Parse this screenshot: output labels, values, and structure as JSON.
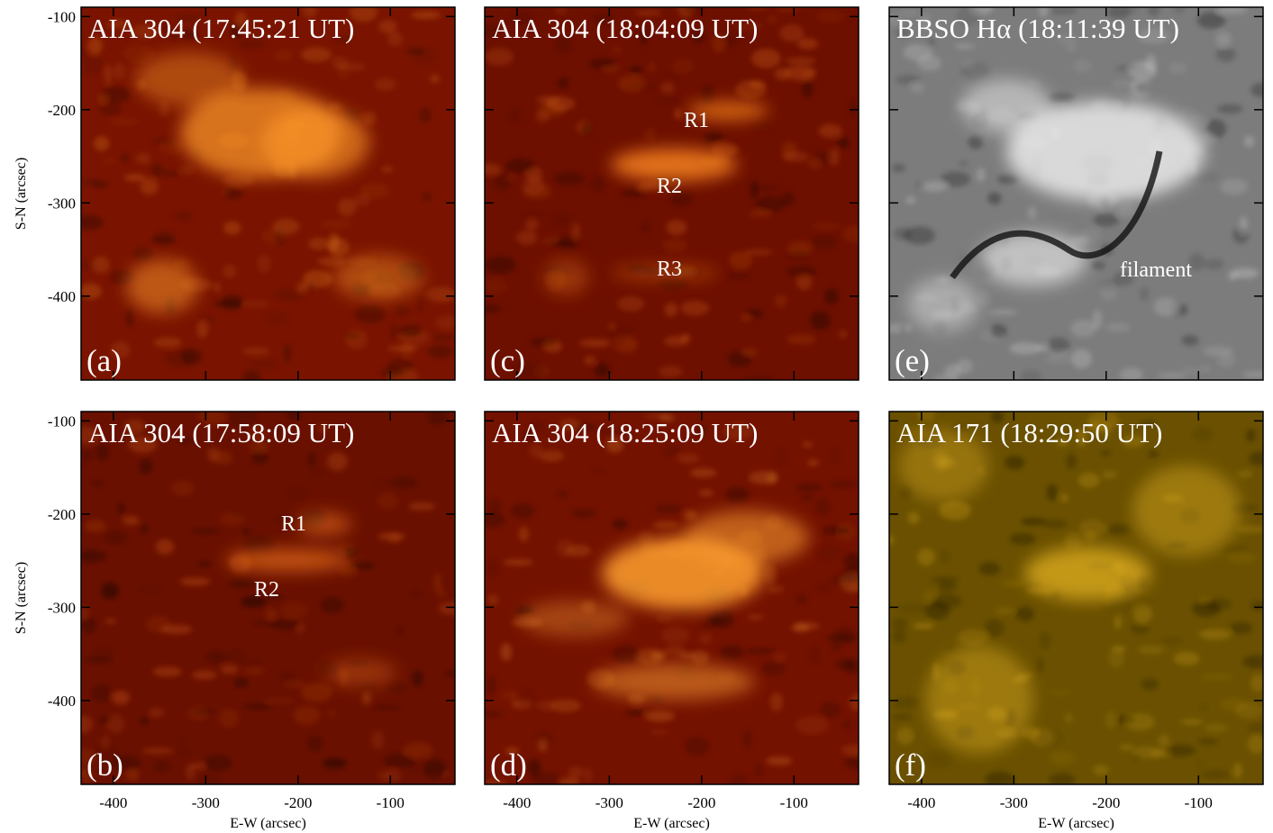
{
  "chart_data": [
    {
      "type": "image",
      "title": "AIA 304 (17:45:21 UT)",
      "panel_label": "(a)",
      "annotations": [],
      "color": "#7a1400",
      "highlight_color": "#ff9a2a",
      "xlim": [
        -435,
        -30
      ],
      "ylim": [
        -490,
        -90
      ],
      "xticks": [
        -400,
        -300,
        -200,
        -100
      ],
      "yticks": [
        -100,
        -200,
        -300,
        -400
      ],
      "xtick_labels": false,
      "ytick_labels": true,
      "ylabel": "S-N (arcsec)"
    },
    {
      "type": "image",
      "title": "AIA 304 (18:04:09 UT)",
      "panel_label": "(c)",
      "annotations": [
        "R1",
        "R2",
        "R3"
      ],
      "color": "#6e1000",
      "highlight_color": "#ff8a20",
      "xlim": [
        -435,
        -30
      ],
      "ylim": [
        -490,
        -90
      ],
      "xticks": [
        -400,
        -300,
        -200,
        -100
      ],
      "yticks": [
        -100,
        -200,
        -300,
        -400
      ],
      "xtick_labels": false,
      "ytick_labels": false
    },
    {
      "type": "image",
      "title": "BBSO Hα (18:11:39 UT)",
      "panel_label": "(e)",
      "annotations": [
        "filament"
      ],
      "color": "#7c7c7c",
      "highlight_color": "#f0f0f0",
      "xlim": [
        -435,
        -30
      ],
      "ylim": [
        -490,
        -90
      ],
      "xticks": [
        -400,
        -300,
        -200,
        -100
      ],
      "yticks": [
        -100,
        -200,
        -300,
        -400
      ],
      "xtick_labels": false,
      "ytick_labels": false
    },
    {
      "type": "image",
      "title": "AIA 304 (17:58:09 UT)",
      "panel_label": "(b)",
      "annotations": [
        "R1",
        "R2"
      ],
      "color": "#6a1000",
      "highlight_color": "#ff8020",
      "xlim": [
        -435,
        -30
      ],
      "ylim": [
        -490,
        -90
      ],
      "xticks": [
        -400,
        -300,
        -200,
        -100
      ],
      "yticks": [
        -100,
        -200,
        -300,
        -400
      ],
      "xtick_labels": true,
      "ytick_labels": true,
      "xlabel": "E-W (arcsec)",
      "ylabel": "S-N (arcsec)"
    },
    {
      "type": "image",
      "title": "AIA 304 (18:25:09 UT)",
      "panel_label": "(d)",
      "annotations": [],
      "color": "#741200",
      "highlight_color": "#ffa030",
      "xlim": [
        -435,
        -30
      ],
      "ylim": [
        -490,
        -90
      ],
      "xticks": [
        -400,
        -300,
        -200,
        -100
      ],
      "yticks": [
        -100,
        -200,
        -300,
        -400
      ],
      "xtick_labels": true,
      "ytick_labels": false,
      "xlabel": "E-W (arcsec)"
    },
    {
      "type": "image",
      "title": "AIA 171 (18:29:50 UT)",
      "panel_label": "(f)",
      "annotations": [],
      "color": "#6a5000",
      "highlight_color": "#ffc828",
      "xlim": [
        -435,
        -30
      ],
      "ylim": [
        -490,
        -90
      ],
      "xticks": [
        -400,
        -300,
        -200,
        -100
      ],
      "yticks": [
        -100,
        -200,
        -300,
        -400
      ],
      "xtick_labels": true,
      "ytick_labels": false,
      "xlabel": "E-W (arcsec)"
    }
  ]
}
